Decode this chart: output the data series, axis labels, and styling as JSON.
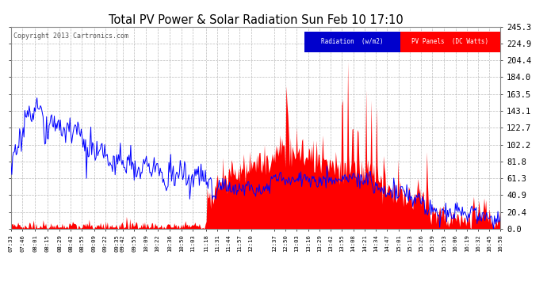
{
  "title": "Total PV Power & Solar Radiation Sun Feb 10 17:10",
  "copyright": "Copyright 2013 Cartronics.com",
  "legend_radiation": "Radiation  (w/m2)",
  "legend_pv": "PV Panels  (DC Watts)",
  "yticks": [
    0.0,
    20.4,
    40.9,
    61.3,
    81.8,
    102.2,
    122.7,
    143.1,
    163.5,
    184.0,
    204.4,
    224.9,
    245.3
  ],
  "xtick_labels": [
    "07:33",
    "07:46",
    "08:01",
    "08:15",
    "08:29",
    "08:42",
    "08:55",
    "09:09",
    "09:22",
    "09:35",
    "09:42",
    "09:55",
    "10:09",
    "10:22",
    "10:36",
    "10:50",
    "11:03",
    "11:18",
    "11:31",
    "11:44",
    "11:57",
    "12:10",
    "12:37",
    "12:50",
    "13:03",
    "13:16",
    "13:29",
    "13:42",
    "13:55",
    "14:08",
    "14:21",
    "14:34",
    "14:47",
    "15:01",
    "15:13",
    "15:26",
    "15:39",
    "15:53",
    "16:06",
    "16:19",
    "16:32",
    "16:45",
    "16:58"
  ],
  "background_color": "#ffffff",
  "plot_bg_color": "#ffffff",
  "grid_color": "#aaaaaa",
  "radiation_color": "#0000ff",
  "pv_fill_color": "#ff0000",
  "ymax": 245.3,
  "ymin": 0.0
}
